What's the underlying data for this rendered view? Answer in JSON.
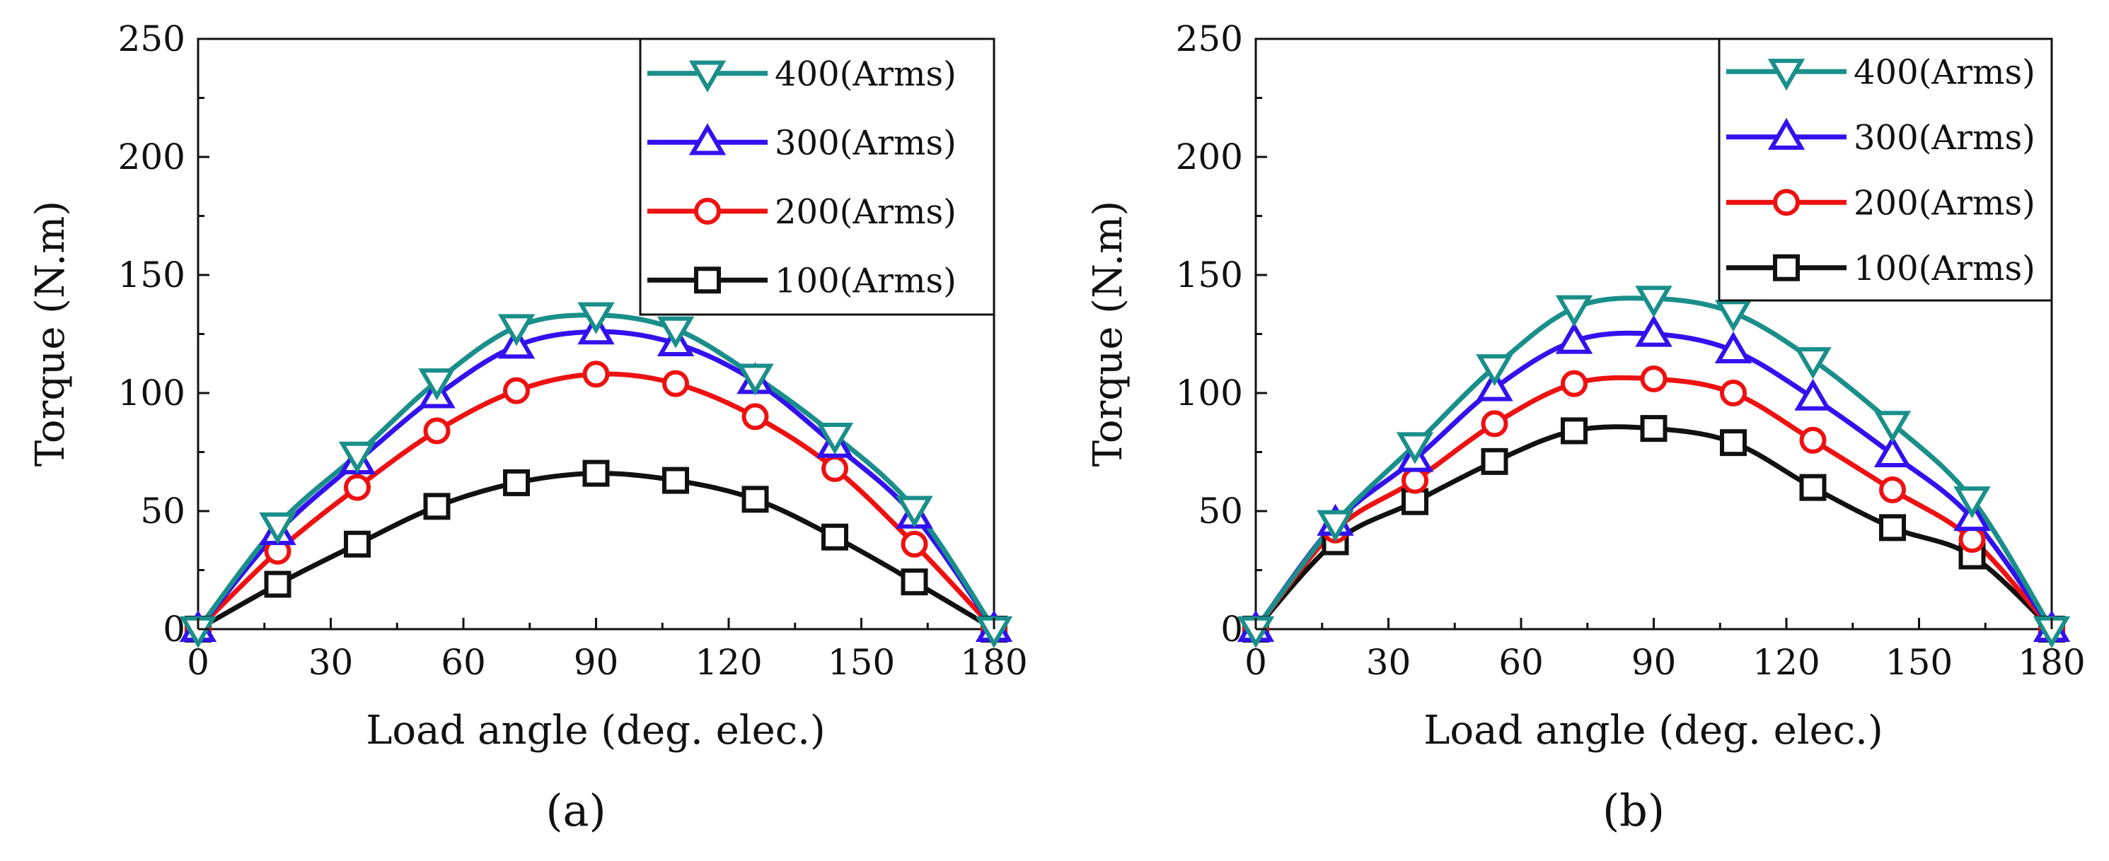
{
  "chart_data": [
    {
      "type": "line",
      "panel_label": "(a)",
      "xlabel": "Load angle (deg. elec.)",
      "ylabel": "Torque (N.m)",
      "xlim": [
        0,
        180
      ],
      "ylim": [
        0,
        250
      ],
      "xticks": [
        "0",
        "30",
        "60",
        "90",
        "120",
        "150",
        "180"
      ],
      "yticks": [
        "0",
        "50",
        "100",
        "150",
        "200",
        "250"
      ],
      "grid": false,
      "legend_position": "top-right",
      "x": [
        0,
        18,
        36,
        54,
        72,
        90,
        108,
        126,
        144,
        162,
        180
      ],
      "series": [
        {
          "name": "400(Arms)",
          "marker": "triangle-down",
          "color": "#1a8f8a",
          "values": [
            0,
            44,
            74,
            105,
            128,
            133,
            127,
            107,
            82,
            51,
            0
          ]
        },
        {
          "name": "300(Arms)",
          "marker": "triangle-up",
          "color": "#3311ee",
          "values": [
            0,
            41,
            71,
            99,
            120,
            126,
            121,
            105,
            78,
            48,
            0
          ]
        },
        {
          "name": "200(Arms)",
          "marker": "circle",
          "color": "#ee1111",
          "values": [
            0,
            33,
            60,
            84,
            101,
            108,
            104,
            90,
            68,
            36,
            0
          ]
        },
        {
          "name": "100(Arms)",
          "marker": "square",
          "color": "#111111",
          "values": [
            0,
            19,
            36,
            52,
            62,
            66,
            63,
            55,
            39,
            20,
            0
          ]
        }
      ]
    },
    {
      "type": "line",
      "panel_label": "(b)",
      "xlabel": "Load angle (deg. elec.)",
      "ylabel": "Torque (N.m)",
      "xlim": [
        0,
        180
      ],
      "ylim": [
        0,
        250
      ],
      "xticks": [
        "0",
        "30",
        "60",
        "90",
        "120",
        "150",
        "180"
      ],
      "yticks": [
        "0",
        "50",
        "100",
        "150",
        "200",
        "250"
      ],
      "grid": false,
      "legend_position": "top-right",
      "x": [
        0,
        18,
        36,
        54,
        72,
        90,
        108,
        126,
        144,
        162,
        180
      ],
      "series": [
        {
          "name": "400(Arms)",
          "marker": "triangle-down",
          "color": "#1a8f8a",
          "values": [
            0,
            45,
            78,
            111,
            136,
            140,
            134,
            114,
            87,
            55,
            0
          ]
        },
        {
          "name": "300(Arms)",
          "marker": "triangle-up",
          "color": "#3311ee",
          "values": [
            0,
            45,
            72,
            102,
            122,
            125,
            118,
            98,
            74,
            47,
            0
          ]
        },
        {
          "name": "200(Arms)",
          "marker": "circle",
          "color": "#ee1111",
          "values": [
            0,
            42,
            63,
            87,
            104,
            106,
            100,
            80,
            59,
            38,
            0
          ]
        },
        {
          "name": "100(Arms)",
          "marker": "square",
          "color": "#111111",
          "values": [
            0,
            37,
            54,
            71,
            84,
            85,
            79,
            60,
            43,
            31,
            0
          ]
        }
      ]
    }
  ]
}
